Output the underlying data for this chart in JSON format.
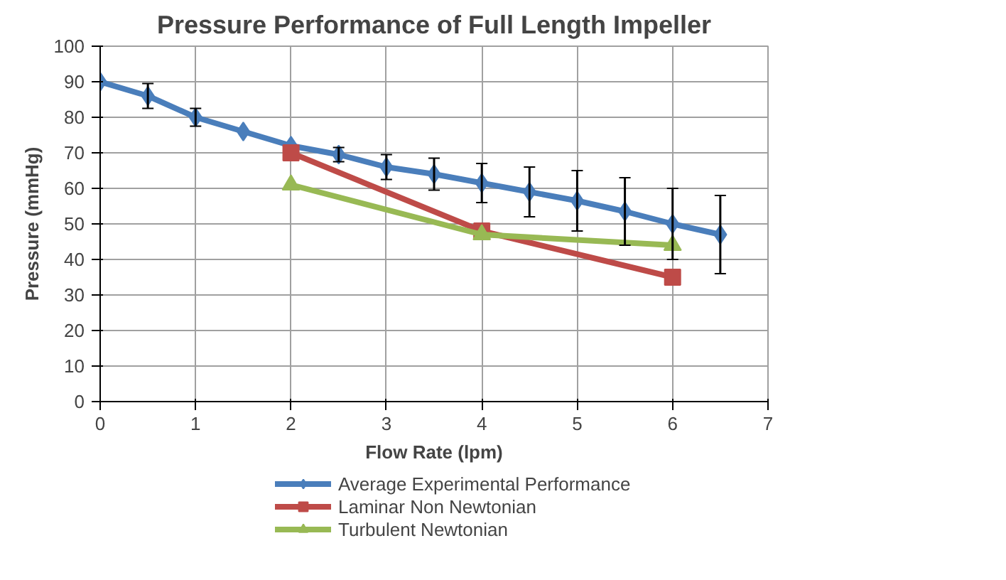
{
  "chart_data": {
    "type": "line",
    "title": "Pressure Performance of Full Length Impeller",
    "xlabel": "Flow Rate (lpm)",
    "ylabel": "Pressure (mmHg)",
    "xlim": [
      0,
      7
    ],
    "xticks": [
      0,
      1,
      2,
      3,
      4,
      5,
      6,
      7
    ],
    "ylim": [
      0,
      100
    ],
    "yticks": [
      0,
      10,
      20,
      30,
      40,
      50,
      60,
      70,
      80,
      90,
      100
    ],
    "grid": true,
    "legend": "bottom",
    "series": [
      {
        "name": "Average Experimental Performance",
        "color": "#4a7ebb",
        "marker": "diamond",
        "x": [
          0,
          0.5,
          1,
          1.5,
          2,
          2.5,
          3,
          3.5,
          4,
          4.5,
          5,
          5.5,
          6,
          6.5
        ],
        "values": [
          90,
          86,
          80,
          76,
          72,
          69.5,
          66,
          64,
          61.5,
          59,
          56.5,
          53.5,
          50,
          47
        ],
        "errors": [
          null,
          3.5,
          2.5,
          null,
          null,
          2,
          3.5,
          4.5,
          5.5,
          7,
          8.5,
          9.5,
          10,
          11
        ]
      },
      {
        "name": "Laminar Non Newtonian",
        "color": "#be4b48",
        "marker": "square",
        "x": [
          2,
          4,
          6
        ],
        "values": [
          70,
          48,
          35
        ]
      },
      {
        "name": "Turbulent Newtonian",
        "color": "#98b954",
        "marker": "triangle",
        "x": [
          2,
          4,
          6
        ],
        "values": [
          61,
          47,
          44
        ]
      }
    ]
  }
}
